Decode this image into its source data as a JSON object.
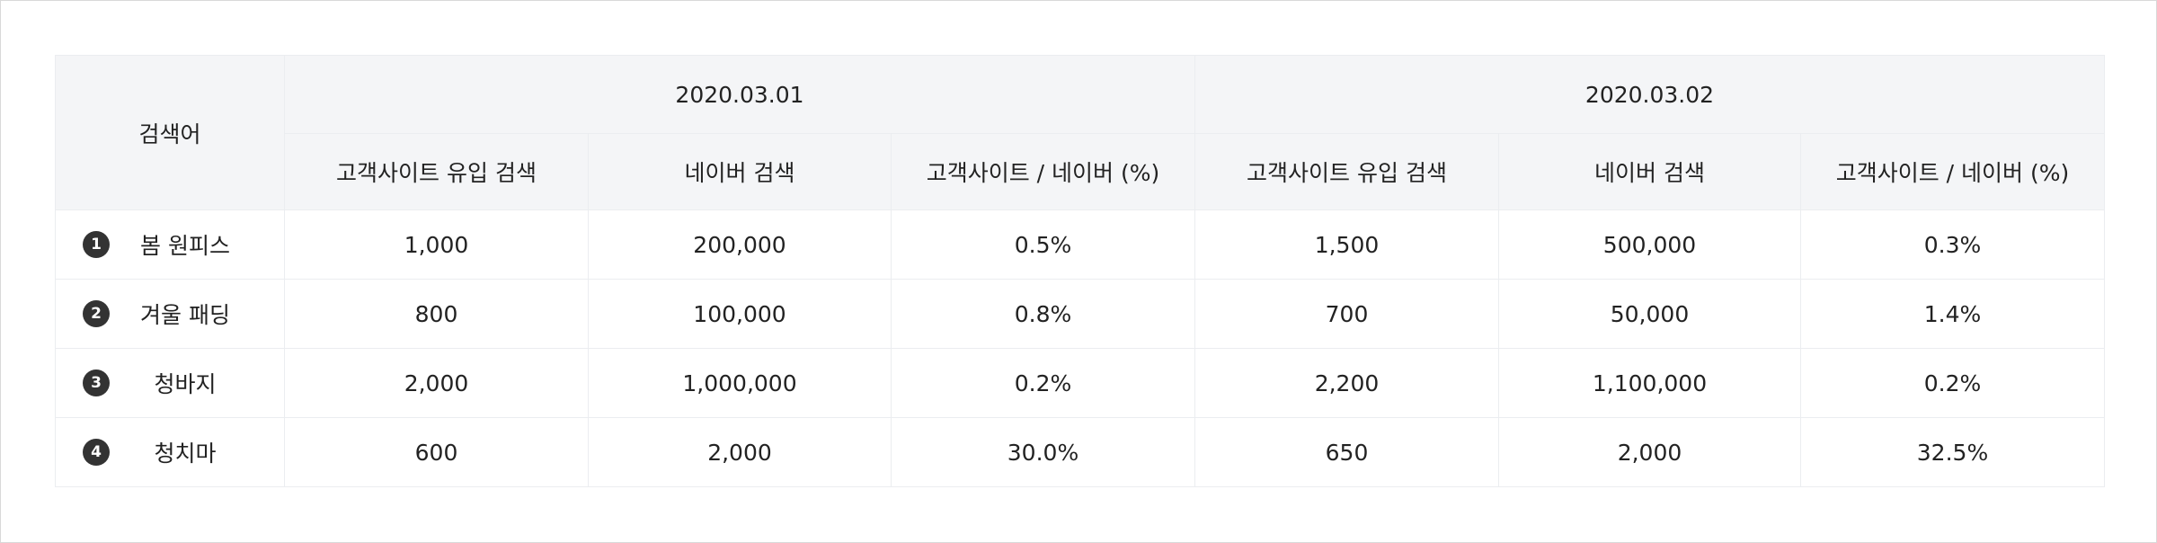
{
  "table": {
    "keyword_header": "검색어",
    "date_groups": [
      {
        "date": "2020.03.01",
        "columns": [
          "고객사이트 유입 검색",
          "네이버 검색",
          "고객사이트 / 네이버 (%)"
        ]
      },
      {
        "date": "2020.03.02",
        "columns": [
          "고객사이트 유입 검색",
          "네이버 검색",
          "고객사이트 / 네이버 (%)"
        ]
      }
    ],
    "rows": [
      {
        "rank": "1",
        "keyword": "봄 원피스",
        "values": [
          "1,000",
          "200,000",
          "0.5%",
          "1,500",
          "500,000",
          "0.3%"
        ]
      },
      {
        "rank": "2",
        "keyword": "겨울 패딩",
        "values": [
          "800",
          "100,000",
          "0.8%",
          "700",
          "50,000",
          "1.4%"
        ]
      },
      {
        "rank": "3",
        "keyword": "청바지",
        "values": [
          "2,000",
          "1,000,000",
          "0.2%",
          "2,200",
          "1,100,000",
          "0.2%"
        ]
      },
      {
        "rank": "4",
        "keyword": "청치마",
        "values": [
          "600",
          "2,000",
          "30.0%",
          "650",
          "2,000",
          "32.5%"
        ]
      }
    ]
  },
  "colors": {
    "header_bg": "#f4f5f7",
    "border": "#ebedf0",
    "badge_bg": "#333333",
    "text": "#222222"
  }
}
